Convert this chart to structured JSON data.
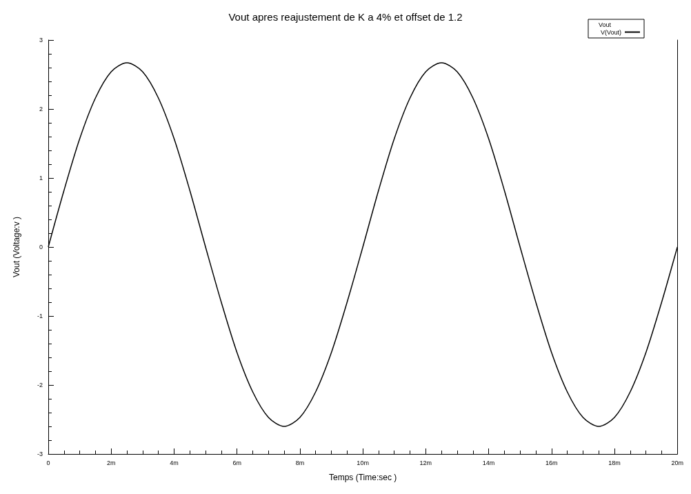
{
  "chart_data": {
    "type": "line",
    "title": "Vout apres reajustement de K a 4% et offset de 1.2",
    "xlabel": "Temps (Time:sec )",
    "ylabel": "Vout (Voltage:v )",
    "legend_title": "Vout",
    "legend": "top right",
    "grid": false,
    "marker": "none",
    "line_style": "solid",
    "x": [
      0,
      0.5,
      1,
      1.5,
      2,
      2.5,
      3,
      3.5,
      4,
      4.5,
      5,
      5.5,
      6,
      6.5,
      7,
      7.5,
      8,
      8.5,
      9,
      9.5,
      10,
      10.5,
      11,
      11.5,
      12,
      12.5,
      13,
      13.5,
      14,
      14.5,
      15,
      15.5,
      16,
      16.5,
      17,
      17.5,
      18,
      18.5,
      19,
      19.5,
      20
    ],
    "series": [
      {
        "name": "V(Vout)",
        "color": "#000000",
        "values": [
          0,
          0.82,
          1.57,
          2.16,
          2.54,
          2.67,
          2.54,
          2.16,
          1.57,
          0.82,
          0,
          -0.8,
          -1.53,
          -2.1,
          -2.47,
          -2.6,
          -2.47,
          -2.1,
          -1.53,
          -0.8,
          0,
          0.82,
          1.57,
          2.16,
          2.54,
          2.67,
          2.54,
          2.16,
          1.57,
          0.82,
          0,
          -0.8,
          -1.53,
          -2.1,
          -2.47,
          -2.6,
          -2.47,
          -2.1,
          -1.53,
          -0.8,
          0
        ]
      }
    ],
    "xlim": [
      0,
      20
    ],
    "xticks": [
      0,
      {
        "value": 2,
        "label": "2m"
      },
      {
        "value": 4,
        "label": "4m"
      },
      {
        "value": 6,
        "label": "6m"
      },
      {
        "value": 8,
        "label": "8m"
      },
      {
        "value": 10,
        "label": "10m"
      },
      {
        "value": 12,
        "label": "12m"
      },
      {
        "value": 14,
        "label": "14m"
      },
      {
        "value": 16,
        "label": "16m"
      },
      {
        "value": 18,
        "label": "18m"
      },
      {
        "value": 20,
        "label": "20m"
      }
    ],
    "ylim": [
      -3,
      3
    ],
    "yticks": [
      -3,
      -2,
      -1,
      0,
      1,
      2,
      3
    ]
  }
}
